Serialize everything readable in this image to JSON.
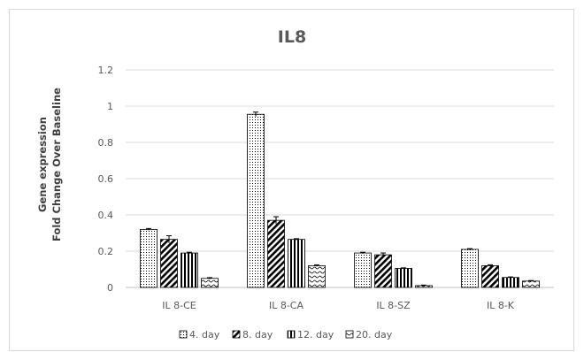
{
  "chart_data": {
    "type": "bar",
    "title": "IL8",
    "ylabel": [
      "Gene expression",
      "Fold Change Over Baseline"
    ],
    "xlabel": "",
    "ylim": [
      0,
      1.2
    ],
    "yticks": [
      "0",
      "0.2",
      "0.4",
      "0.6",
      "0.8",
      "1",
      "1.2"
    ],
    "grid": true,
    "legend_position": "bottom",
    "categories": [
      "IL 8-CE",
      "IL 8-CA",
      "IL 8-SZ",
      "IL 8-K"
    ],
    "series": [
      {
        "name": "4. day",
        "pattern": "dots",
        "values": [
          0.32,
          0.955,
          0.19,
          0.21
        ],
        "errors": [
          0.005,
          0.012,
          0.004,
          0.004
        ]
      },
      {
        "name": "8. day",
        "pattern": "diagonal",
        "values": [
          0.265,
          0.37,
          0.18,
          0.12
        ],
        "errors": [
          0.02,
          0.02,
          0.01,
          0.005
        ]
      },
      {
        "name": "12. day",
        "pattern": "vertical",
        "values": [
          0.19,
          0.265,
          0.105,
          0.055
        ],
        "errors": [
          0.004,
          0.004,
          0.003,
          0.003
        ]
      },
      {
        "name": "20. day",
        "pattern": "wave",
        "values": [
          0.05,
          0.12,
          0.01,
          0.035
        ],
        "errors": [
          0.004,
          0.004,
          0.003,
          0.003
        ]
      }
    ],
    "colors": {
      "bar_stroke": "#000000",
      "grid": "#d9d9d9",
      "text": "#595959"
    }
  }
}
